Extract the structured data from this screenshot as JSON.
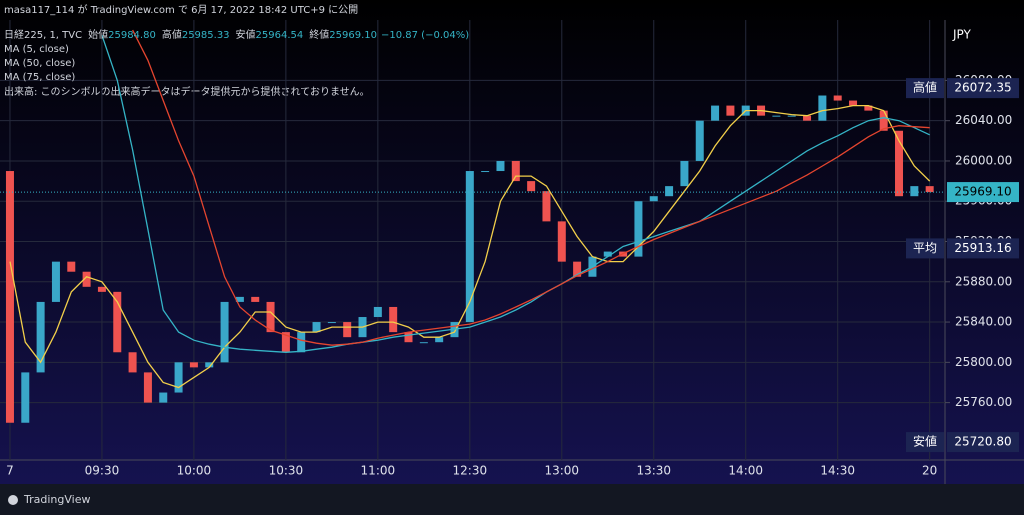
{
  "chart_data": {
    "type": "candlestick",
    "header": "masa117_114 が TradingView.com で 6月 17, 2022 18:42 UTC+9 に公開",
    "legend": {
      "symbol": "日経225, 1, TVC",
      "fields": [
        {
          "label": "始値",
          "value": "25984.80"
        },
        {
          "label": "高値",
          "value": "25985.33"
        },
        {
          "label": "安値",
          "value": "25964.54"
        },
        {
          "label": "終値",
          "value": "25969.10"
        }
      ],
      "change": "−10.87 (−0.04%)"
    },
    "volume_note": "出来高: このシンボルの出来高データはデータ提供元から提供されておりません。",
    "currency": "JPY",
    "brand": "TradingView",
    "xlim": [
      -0.65,
      61
    ],
    "xticks": [
      {
        "value": 0,
        "label": "7"
      },
      {
        "value": 6,
        "label": "09:30"
      },
      {
        "value": 12,
        "label": "10:00"
      },
      {
        "value": 18,
        "label": "10:30"
      },
      {
        "value": 24,
        "label": "11:00"
      },
      {
        "value": 30,
        "label": "12:30"
      },
      {
        "value": 36,
        "label": "13:00"
      },
      {
        "value": 42,
        "label": "13:30"
      },
      {
        "value": 48,
        "label": "14:00"
      },
      {
        "value": 54,
        "label": "14:30"
      },
      {
        "value": 60,
        "label": "20"
      }
    ],
    "ylim": [
      25703,
      26140
    ],
    "yticks": [
      {
        "value": 25760,
        "label": "25760.00"
      },
      {
        "value": 25800,
        "label": "25800.00"
      },
      {
        "value": 25840,
        "label": "25840.00"
      },
      {
        "value": 25880,
        "label": "25880.00"
      },
      {
        "value": 25920,
        "label": "25920.00"
      },
      {
        "value": 25960,
        "label": "25960.00"
      },
      {
        "value": 26000,
        "label": "26000.00"
      },
      {
        "value": 26040,
        "label": "26040.00"
      },
      {
        "value": 26080,
        "label": "26080.00"
      }
    ],
    "grid": true,
    "up_color": "#3aa7c9",
    "down_color": "#ef5350",
    "first_open": 25990,
    "close": [
      25740,
      25790,
      25860,
      25900,
      25890,
      25875,
      25870,
      25810,
      25790,
      25760,
      25770,
      25800,
      25795,
      25800,
      25860,
      25865,
      25860,
      25830,
      25810,
      25830,
      25840,
      25840,
      25825,
      25845,
      25855,
      25830,
      25820,
      25820,
      25825,
      25840,
      25990,
      25990,
      26000,
      25980,
      25970,
      25940,
      25900,
      25885,
      25905,
      25910,
      25905,
      25960,
      25965,
      25975,
      26000,
      26040,
      26055,
      26045,
      26055,
      26045,
      26045,
      26045,
      26040,
      26065,
      26060,
      26055,
      26050,
      26030,
      25965,
      25975,
      25969.1
    ],
    "series": [
      {
        "name": "MA (5, close)",
        "color": "#f2cf4a",
        "values": [
          25900,
          25820,
          25800,
          25830,
          25870,
          25885,
          25880,
          25860,
          25830,
          25800,
          25780,
          25775,
          25785,
          25795,
          25815,
          25830,
          25850,
          25850,
          25835,
          25830,
          25830,
          25835,
          25835,
          25835,
          25840,
          25840,
          25835,
          25825,
          25825,
          25830,
          25860,
          25900,
          25960,
          25985,
          25985,
          25975,
          25950,
          25925,
          25905,
          25900,
          25900,
          25915,
          25930,
          25950,
          25970,
          25990,
          26015,
          26035,
          26050,
          26050,
          26048,
          26046,
          26045,
          26050,
          26052,
          26055,
          26055,
          26050,
          26020,
          25995,
          25980
        ]
      },
      {
        "name": "MA (50, close)",
        "color": "#35b4c6",
        "values": [
          null,
          null,
          null,
          null,
          null,
          null,
          26125,
          26080,
          26011,
          25932,
          25852,
          25830,
          25822,
          25818,
          25815,
          25813,
          25812,
          25811,
          25810,
          25811,
          25813,
          25815,
          25818,
          25820,
          25822,
          25825,
          25827,
          25829,
          25831,
          25833,
          25835,
          25840,
          25845,
          25852,
          25860,
          25870,
          25878,
          25887,
          25895,
          25905,
          25915,
          25920,
          25925,
          25930,
          25935,
          25940,
          25950,
          25960,
          25970,
          25980,
          25990,
          26000,
          26010,
          26018,
          26025,
          26033,
          26040,
          26043,
          26040,
          26033,
          26026
        ]
      },
      {
        "name": "MA (75, close)",
        "color": "#e5452f",
        "values": [
          null,
          null,
          null,
          null,
          null,
          null,
          null,
          null,
          26130,
          26100,
          26060,
          26020,
          25985,
          25935,
          25885,
          25855,
          25842,
          25832,
          25827,
          25822,
          25819,
          25817,
          25818,
          25820,
          25824,
          25827,
          25830,
          25832,
          25834,
          25836,
          25838,
          25842,
          25848,
          25855,
          25862,
          25870,
          25878,
          25886,
          25893,
          25900,
          25908,
          25915,
          25922,
          25928,
          25934,
          25940,
          25946,
          25952,
          25958,
          25964,
          25970,
          25978,
          25986,
          25995,
          26004,
          26014,
          26024,
          26032,
          26035,
          26034,
          26033
        ]
      }
    ],
    "markers": [
      {
        "name": "高値",
        "value": 26072.35,
        "value_label": "26072.35"
      },
      {
        "name": "平均",
        "value": 25913.16,
        "value_label": "25913.16"
      },
      {
        "name": "安値",
        "value": 25720.8,
        "value_label": "25720.80"
      }
    ],
    "last": {
      "value": 25969.1,
      "value_label": "25969.10"
    }
  }
}
